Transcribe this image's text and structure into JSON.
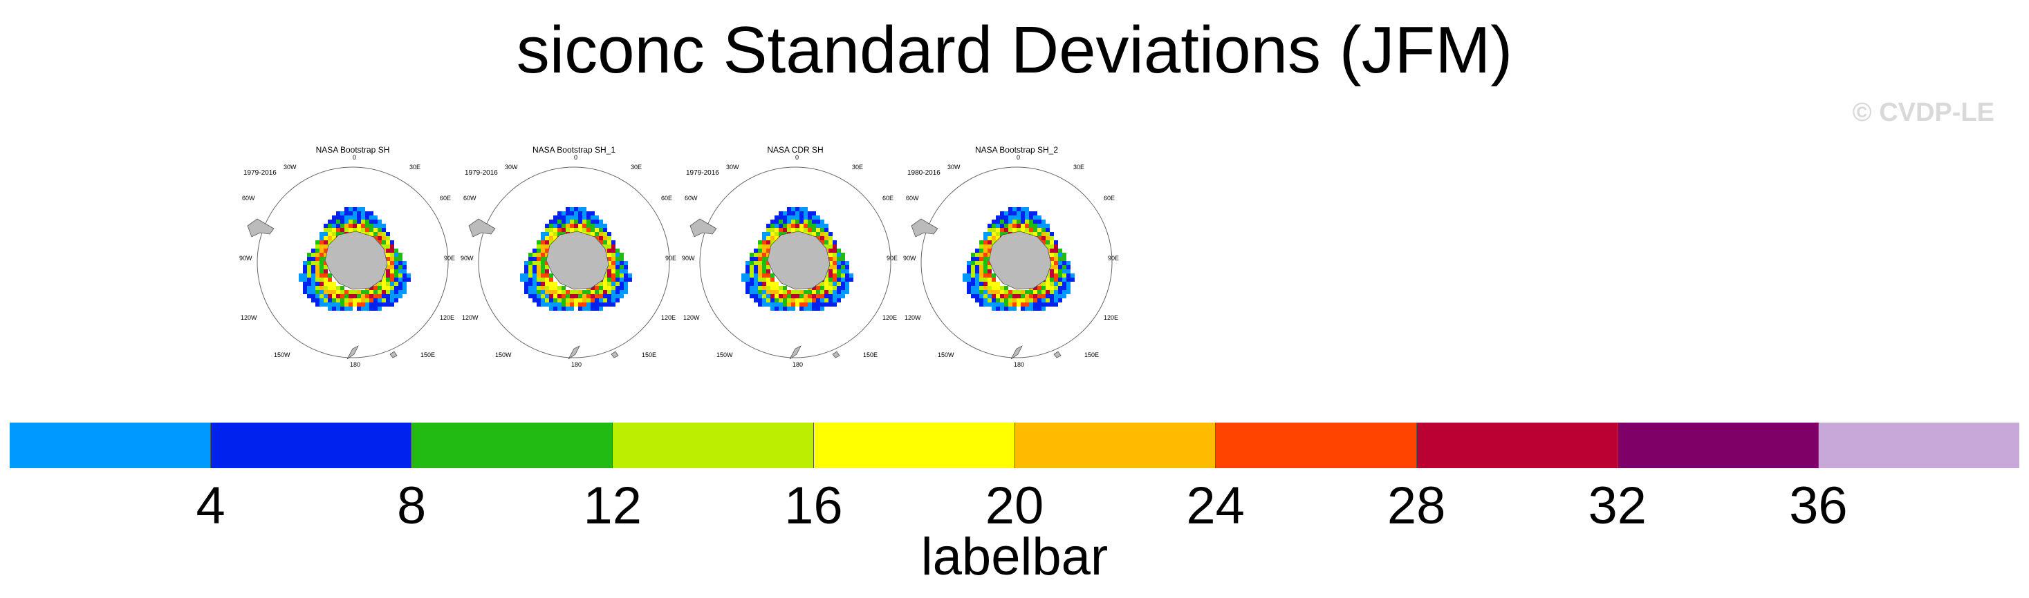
{
  "page": {
    "title": "siconc Standard Deviations (JFM)",
    "watermark": "© CVDP-LE"
  },
  "panels": [
    {
      "title": "NASA Bootstrap SH",
      "years": "1979-2016"
    },
    {
      "title": "NASA Bootstrap SH_1",
      "years": "1979-2016"
    },
    {
      "title": "NASA CDR SH",
      "years": "1979-2016"
    },
    {
      "title": "NASA Bootstrap SH_2",
      "years": "1980-2016"
    }
  ],
  "map_labels": {
    "top": "0",
    "lon_30w": "30W",
    "lon_30e": "30E",
    "lon_60w": "60W",
    "lon_60e": "60E",
    "lon_90w": "90W",
    "lon_90e": "90E",
    "lon_120w": "120W",
    "lon_120e": "120E",
    "lon_150w": "150W",
    "lon_150e": "150E",
    "bottom": "180"
  },
  "colors": {
    "land": "#bbbbbb",
    "coast": "#555555",
    "circle": "#666666"
  },
  "labelbar": {
    "title": "labelbar",
    "ticks": [
      "4",
      "8",
      "12",
      "16",
      "20",
      "24",
      "28",
      "32",
      "36"
    ],
    "colors": [
      "#0099ff",
      "#0022ee",
      "#22bb11",
      "#bbee00",
      "#ffff00",
      "#ffbb00",
      "#ff4400",
      "#bb0033",
      "#7f0066",
      "#c8a8d8"
    ]
  }
}
